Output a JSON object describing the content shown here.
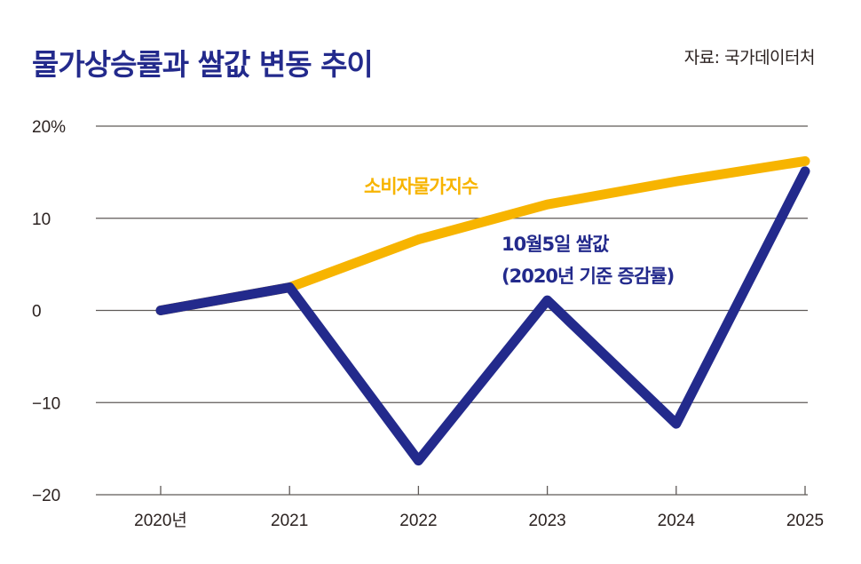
{
  "header": {
    "title": "물가상승률과 쌀값 변동 추이",
    "source": "자료: 국가데이터처"
  },
  "chart_data": {
    "type": "line",
    "title": "물가상승률과 쌀값 변동 추이",
    "source": "자료: 국가데이터처",
    "xlabel": "",
    "ylabel": "",
    "categories": [
      "2020년",
      "2021",
      "2022",
      "2023",
      "2024",
      "2025"
    ],
    "ylim": [
      -20,
      20
    ],
    "yticks": [
      20,
      10,
      0,
      -10,
      -20
    ],
    "ytick_labels": [
      "20%",
      "10",
      "0",
      "−10",
      "−20"
    ],
    "grid": true,
    "series": [
      {
        "name": "소비자물가지수",
        "color": "#f7b400",
        "values": [
          0,
          2.5,
          7.7,
          11.5,
          14.0,
          16.2
        ],
        "label_lines": [
          "소비자물가지수"
        ]
      },
      {
        "name": "10월5일 쌀값 (2020년 기준 증감률)",
        "color": "#232a8c",
        "values": [
          0,
          2.5,
          -16.3,
          1.1,
          -12.3,
          15.1
        ],
        "label_lines": [
          "10월5일 쌀값",
          "(2020년 기준 증감률)"
        ]
      }
    ],
    "legend": "inline-annotations"
  }
}
